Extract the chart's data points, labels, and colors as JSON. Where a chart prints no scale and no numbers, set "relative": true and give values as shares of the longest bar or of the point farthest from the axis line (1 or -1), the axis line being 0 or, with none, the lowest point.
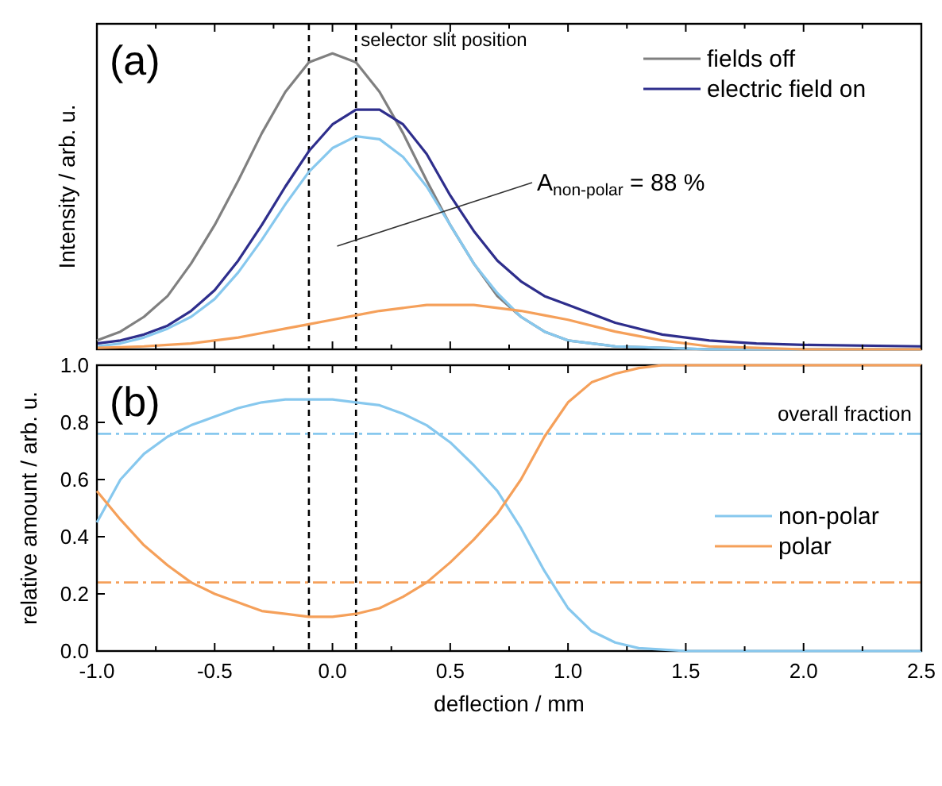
{
  "chart_data": [
    {
      "type": "line",
      "relative": true,
      "ylabel": "Intensity / arb. u.",
      "tick_labels": false,
      "legend": "top right",
      "marker": "none",
      "line_style": "solid",
      "xlim": [
        -1,
        2.5
      ],
      "xticks": [
        -1,
        -0.5,
        0,
        0.5,
        1,
        1.5,
        2,
        2.5
      ],
      "x": [
        -1,
        -0.9,
        -0.8,
        -0.7,
        -0.6,
        -0.5,
        -0.4,
        -0.3,
        -0.2,
        -0.1,
        0,
        0.1,
        0.2,
        0.3,
        0.4,
        0.5,
        0.6,
        0.7,
        0.8,
        0.9,
        1,
        1.2,
        1.4,
        1.6,
        1.8,
        2,
        2.5
      ],
      "series": [
        {
          "name": "fields off",
          "color": "#808080",
          "values": [
            0.03,
            0.06,
            0.11,
            0.18,
            0.29,
            0.42,
            0.57,
            0.73,
            0.87,
            0.97,
            1,
            0.97,
            0.87,
            0.73,
            0.57,
            0.42,
            0.29,
            0.18,
            0.11,
            0.06,
            0.03,
            0.01,
            0.005,
            0,
            0,
            0,
            0
          ]
        },
        {
          "name": "electric field on",
          "color": "#2e2e8c",
          "values": [
            0.02,
            0.03,
            0.05,
            0.08,
            0.13,
            0.2,
            0.3,
            0.42,
            0.55,
            0.67,
            0.76,
            0.81,
            0.81,
            0.76,
            0.66,
            0.52,
            0.4,
            0.3,
            0.23,
            0.18,
            0.15,
            0.09,
            0.05,
            0.03,
            0.02,
            0.015,
            0.01
          ]
        },
        {
          "color": "#87c8ee",
          "values": [
            0.01,
            0.02,
            0.04,
            0.07,
            0.11,
            0.17,
            0.26,
            0.37,
            0.49,
            0.6,
            0.68,
            0.72,
            0.71,
            0.65,
            0.55,
            0.42,
            0.29,
            0.19,
            0.11,
            0.06,
            0.03,
            0.01,
            0.005,
            0,
            0,
            0,
            0
          ]
        },
        {
          "color": "#f5a05a",
          "values": [
            0.005,
            0.007,
            0.01,
            0.015,
            0.02,
            0.03,
            0.04,
            0.055,
            0.07,
            0.085,
            0.1,
            0.115,
            0.13,
            0.14,
            0.15,
            0.15,
            0.15,
            0.14,
            0.13,
            0.115,
            0.1,
            0.06,
            0.03,
            0.01,
            0.005,
            0,
            0
          ]
        }
      ],
      "ref_lines": [
        {
          "axis": "x",
          "value": -0.1,
          "color": "#000000",
          "line_style": "dashed"
        },
        {
          "axis": "x",
          "value": 0.1,
          "label": "selector slit position",
          "color": "#000000",
          "line_style": "dashed"
        }
      ],
      "annotations": [
        "(a)",
        "A$_{non-polar}$ = 88 %"
      ]
    },
    {
      "type": "line",
      "xlabel": "deflection / mm",
      "ylabel": "relative amount / arb. u.",
      "legend": "right",
      "marker": "none",
      "line_style": "solid",
      "xlim": [
        -1,
        2.5
      ],
      "xticks": [
        {
          "value": -1,
          "label": "-1.0"
        },
        {
          "value": -0.5,
          "label": "-0.5"
        },
        {
          "value": 0,
          "label": "0.0"
        },
        {
          "value": 0.5,
          "label": "0.5"
        },
        {
          "value": 1,
          "label": "1.0"
        },
        {
          "value": 1.5,
          "label": "1.5"
        },
        {
          "value": 2,
          "label": "2.0"
        },
        {
          "value": 2.5,
          "label": "2.5"
        }
      ],
      "ylim": [
        0,
        1
      ],
      "yticks": [
        {
          "value": 0,
          "label": "0.0"
        },
        {
          "value": 0.2,
          "label": "0.2"
        },
        {
          "value": 0.4,
          "label": "0.4"
        },
        {
          "value": 0.6,
          "label": "0.6"
        },
        {
          "value": 0.8,
          "label": "0.8"
        },
        {
          "value": 1,
          "label": "1.0"
        }
      ],
      "x": [
        -1,
        -0.9,
        -0.8,
        -0.7,
        -0.6,
        -0.5,
        -0.4,
        -0.3,
        -0.2,
        -0.1,
        0,
        0.1,
        0.2,
        0.3,
        0.4,
        0.5,
        0.6,
        0.7,
        0.8,
        0.9,
        1,
        1.1,
        1.2,
        1.3,
        1.4,
        1.5,
        2,
        2.5
      ],
      "series": [
        {
          "name": "non-polar",
          "color": "#87c8ee",
          "values": [
            0.45,
            0.6,
            0.69,
            0.75,
            0.79,
            0.82,
            0.85,
            0.87,
            0.88,
            0.88,
            0.88,
            0.87,
            0.86,
            0.83,
            0.79,
            0.73,
            0.65,
            0.56,
            0.43,
            0.28,
            0.15,
            0.07,
            0.03,
            0.01,
            0.005,
            0,
            0,
            0
          ]
        },
        {
          "name": "polar",
          "color": "#f5a05a",
          "values": [
            0.56,
            0.46,
            0.37,
            0.3,
            0.24,
            0.2,
            0.17,
            0.14,
            0.13,
            0.12,
            0.12,
            0.13,
            0.15,
            0.19,
            0.24,
            0.31,
            0.39,
            0.48,
            0.6,
            0.75,
            0.87,
            0.94,
            0.97,
            0.99,
            1,
            1,
            1,
            1
          ]
        }
      ],
      "ref_lines": [
        {
          "axis": "y",
          "value": 0.76,
          "label": "overall fraction",
          "color": "#87c8ee",
          "line_style": "dashdot"
        },
        {
          "axis": "y",
          "value": 0.24,
          "color": "#f5a05a",
          "line_style": "dashdot"
        },
        {
          "axis": "x",
          "value": -0.1,
          "color": "#000000",
          "line_style": "dashed"
        },
        {
          "axis": "x",
          "value": 0.1,
          "color": "#000000",
          "line_style": "dashed"
        }
      ],
      "annotations": [
        "(b)"
      ]
    }
  ]
}
